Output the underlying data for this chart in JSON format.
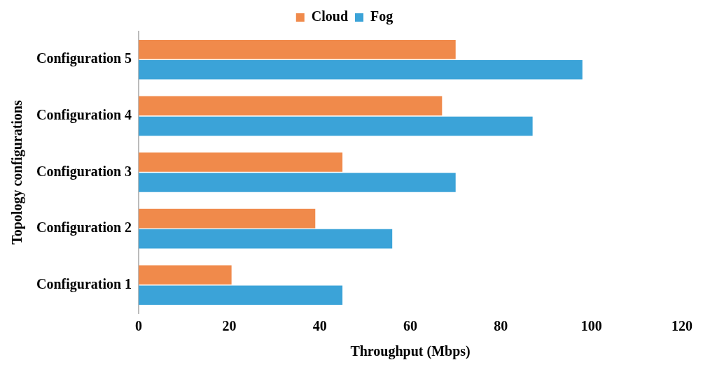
{
  "chart_data": {
    "type": "bar",
    "orientation": "horizontal",
    "xlabel": "Throughput (Mbps)",
    "ylabel": "Topology configurations",
    "categories": [
      "Configuration 5",
      "Configuration 4",
      "Configuration 3",
      "Configuration 2",
      "Configuration 1"
    ],
    "series": [
      {
        "name": "Cloud",
        "color": "#f08a4b",
        "values": [
          70,
          67,
          45,
          39,
          20.5
        ]
      },
      {
        "name": "Fog",
        "color": "#3ba3d8",
        "values": [
          98,
          87,
          70,
          56,
          45
        ]
      }
    ],
    "xlim": [
      0,
      120
    ],
    "xticks": [
      0,
      20,
      40,
      60,
      80,
      100,
      120
    ],
    "grid": false,
    "legend": "top"
  }
}
